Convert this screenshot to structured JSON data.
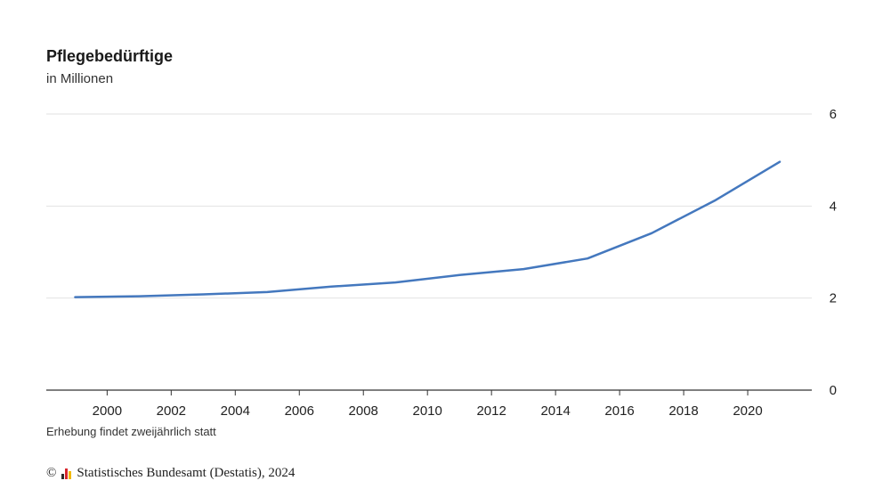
{
  "chart_data": {
    "type": "line",
    "title": "Pflegebedürftige",
    "subtitle": "in Millionen",
    "note": "Erhebung findet zweijährlich statt",
    "xlim": [
      1998.1,
      2022
    ],
    "ylim": [
      0,
      6
    ],
    "x_ticks": [
      2000,
      2002,
      2004,
      2006,
      2008,
      2010,
      2012,
      2014,
      2016,
      2018,
      2020
    ],
    "y_ticks": [
      0,
      2,
      4,
      6
    ],
    "grid": true,
    "y_axis_position": "right",
    "series": [
      {
        "color": "#4478be",
        "x": [
          1999,
          2001,
          2003,
          2005,
          2007,
          2009,
          2011,
          2013,
          2015,
          2017,
          2019,
          2021
        ],
        "y": [
          2.02,
          2.04,
          2.08,
          2.13,
          2.25,
          2.34,
          2.5,
          2.63,
          2.86,
          3.41,
          4.13,
          4.96
        ]
      }
    ]
  },
  "source": {
    "copyright_symbol": "©",
    "text": "Statistisches Bundesamt (Destatis), 2024",
    "logo_icon": "destatis-logo-icon",
    "logo_colors": [
      "#2b2b2b",
      "#d7262d",
      "#f2b900"
    ]
  }
}
